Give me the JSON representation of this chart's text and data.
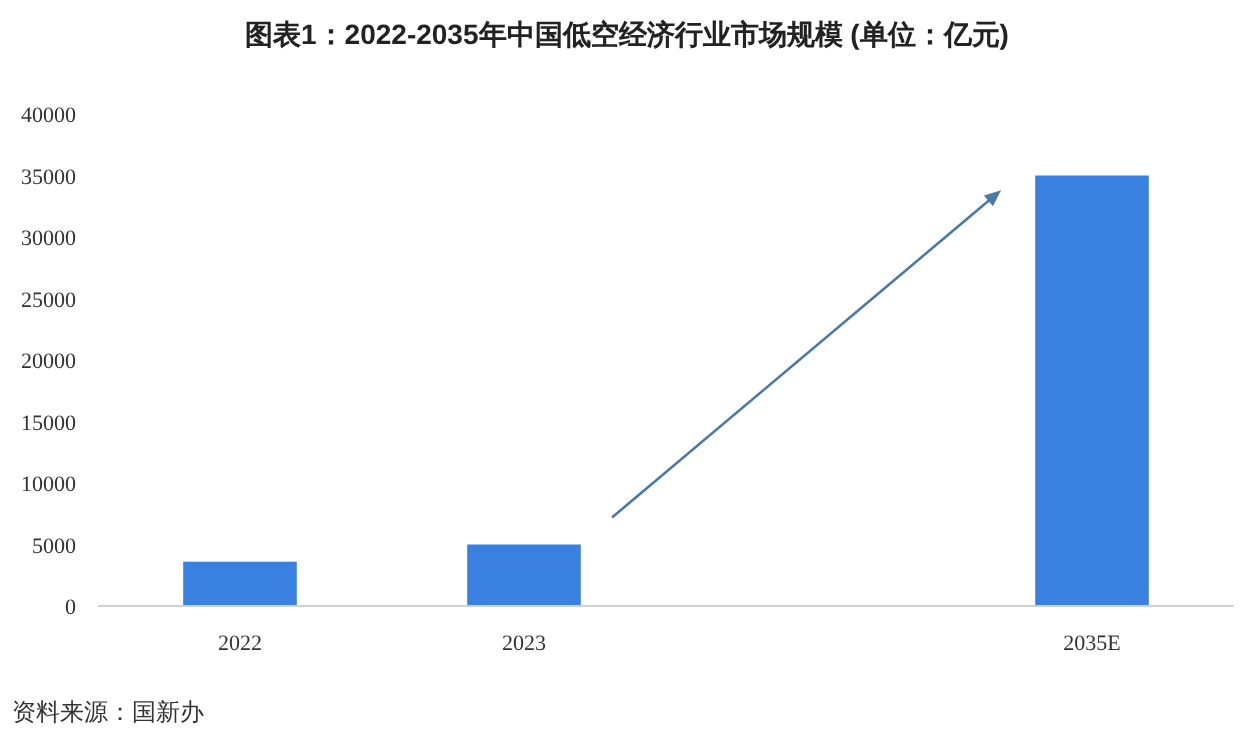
{
  "chart_data": {
    "type": "bar",
    "title": "图表1：2022-2035年中国低空经济行业市场规模 (单位：亿元)",
    "categories": [
      "2022",
      "2023",
      null,
      "2035E"
    ],
    "values": [
      3600,
      5000,
      null,
      35000
    ],
    "color": "#3a80e0",
    "ylim": [
      0,
      40000
    ],
    "yticks": [
      0,
      5000,
      10000,
      15000,
      20000,
      25000,
      30000,
      35000,
      40000
    ],
    "grid": false,
    "annotations": [
      "资料来源：国新办"
    ]
  }
}
